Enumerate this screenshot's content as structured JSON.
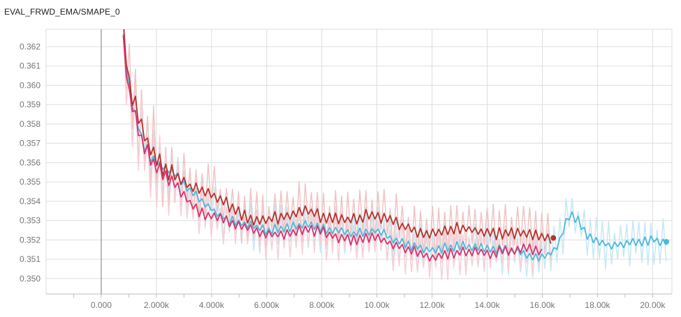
{
  "chart_data": {
    "type": "line",
    "title": "EVAL_FRWD_EMA/SMAPE_0",
    "xlabel": "",
    "ylabel": "",
    "xlim": [
      -2000,
      20700
    ],
    "ylim": [
      0.3492,
      0.3629
    ],
    "x_ticks": [
      "0.000",
      "2.000k",
      "4.000k",
      "6.000k",
      "8.000k",
      "10.00k",
      "12.00k",
      "14.00k",
      "16.00k",
      "18.00k",
      "20.00k"
    ],
    "x_tick_values": [
      0,
      2000,
      4000,
      6000,
      8000,
      10000,
      12000,
      14000,
      16000,
      18000,
      20000
    ],
    "y_ticks": [
      "0.350",
      "0.351",
      "0.352",
      "0.353",
      "0.354",
      "0.355",
      "0.356",
      "0.357",
      "0.358",
      "0.359",
      "0.360",
      "0.361",
      "0.362"
    ],
    "y_tick_values": [
      0.35,
      0.351,
      0.352,
      0.353,
      0.354,
      0.355,
      0.356,
      0.357,
      0.358,
      0.359,
      0.36,
      0.361,
      0.362
    ],
    "grid": true,
    "series": [
      {
        "color": "#4cb8dc",
        "raw_color": "#c6e7f4",
        "smoothed": [
          [
            800,
            0.3625
          ],
          [
            1000,
            0.3598
          ],
          [
            1200,
            0.3587
          ],
          [
            1500,
            0.3571
          ],
          [
            1800,
            0.3563
          ],
          [
            2200,
            0.3558
          ],
          [
            2600,
            0.3555
          ],
          [
            3000,
            0.3549
          ],
          [
            3500,
            0.3542
          ],
          [
            4000,
            0.3536
          ],
          [
            4500,
            0.3531
          ],
          [
            5000,
            0.3529
          ],
          [
            5500,
            0.3527
          ],
          [
            6000,
            0.3525
          ],
          [
            6500,
            0.3526
          ],
          [
            7000,
            0.3527
          ],
          [
            7500,
            0.3528
          ],
          [
            8000,
            0.3526
          ],
          [
            8500,
            0.3525
          ],
          [
            9000,
            0.3523
          ],
          [
            9500,
            0.3524
          ],
          [
            10000,
            0.3525
          ],
          [
            10500,
            0.3521
          ],
          [
            11000,
            0.3518
          ],
          [
            11500,
            0.3516
          ],
          [
            12000,
            0.3515
          ],
          [
            12500,
            0.3516
          ],
          [
            13000,
            0.3517
          ],
          [
            13500,
            0.3516
          ],
          [
            14000,
            0.3516
          ],
          [
            14500,
            0.3515
          ],
          [
            15000,
            0.3514
          ],
          [
            15500,
            0.3512
          ],
          [
            16000,
            0.3511
          ],
          [
            16500,
            0.3515
          ],
          [
            17000,
            0.3534
          ],
          [
            17300,
            0.353
          ],
          [
            17600,
            0.3522
          ],
          [
            18000,
            0.3519
          ],
          [
            18500,
            0.3517
          ],
          [
            19000,
            0.3518
          ],
          [
            19500,
            0.3519
          ],
          [
            20000,
            0.352
          ],
          [
            20500,
            0.3519
          ]
        ],
        "noise": 0.00025,
        "raw_noise": 0.0013,
        "end_dot": true
      },
      {
        "color": "#b5332f",
        "raw_color": "#efc4c3",
        "smoothed": [
          [
            800,
            0.3628
          ],
          [
            1000,
            0.3602
          ],
          [
            1200,
            0.3591
          ],
          [
            1500,
            0.3576
          ],
          [
            1800,
            0.3566
          ],
          [
            2200,
            0.3558
          ],
          [
            2600,
            0.3555
          ],
          [
            3000,
            0.3549
          ],
          [
            3500,
            0.3546
          ],
          [
            4000,
            0.3543
          ],
          [
            4500,
            0.3539
          ],
          [
            5000,
            0.3534
          ],
          [
            5500,
            0.3531
          ],
          [
            6000,
            0.353
          ],
          [
            6500,
            0.3532
          ],
          [
            7000,
            0.3534
          ],
          [
            7500,
            0.3535
          ],
          [
            8000,
            0.3532
          ],
          [
            8500,
            0.3531
          ],
          [
            9000,
            0.353
          ],
          [
            9500,
            0.3532
          ],
          [
            10000,
            0.3533
          ],
          [
            10500,
            0.353
          ],
          [
            11000,
            0.3527
          ],
          [
            11500,
            0.3524
          ],
          [
            12000,
            0.3523
          ],
          [
            12500,
            0.3524
          ],
          [
            13000,
            0.3526
          ],
          [
            13500,
            0.3525
          ],
          [
            14000,
            0.3524
          ],
          [
            14500,
            0.3523
          ],
          [
            15000,
            0.3524
          ],
          [
            15500,
            0.3523
          ],
          [
            16000,
            0.3522
          ],
          [
            16400,
            0.3521
          ]
        ],
        "noise": 0.00035,
        "raw_noise": 0.0016,
        "end_dot": true
      },
      {
        "color": "#d9336f",
        "raw_color": "#f6cfd6",
        "smoothed": [
          [
            800,
            0.3622
          ],
          [
            1000,
            0.3596
          ],
          [
            1200,
            0.3585
          ],
          [
            1500,
            0.357
          ],
          [
            1800,
            0.3562
          ],
          [
            2200,
            0.3555
          ],
          [
            2600,
            0.355
          ],
          [
            3000,
            0.3543
          ],
          [
            3500,
            0.3535
          ],
          [
            4000,
            0.3532
          ],
          [
            4500,
            0.353
          ],
          [
            5000,
            0.3528
          ],
          [
            5500,
            0.3526
          ],
          [
            6000,
            0.3523
          ],
          [
            6500,
            0.3523
          ],
          [
            7000,
            0.3524
          ],
          [
            7500,
            0.3525
          ],
          [
            8000,
            0.3524
          ],
          [
            8500,
            0.3522
          ],
          [
            9000,
            0.352
          ],
          [
            9500,
            0.3521
          ],
          [
            10000,
            0.3522
          ],
          [
            10500,
            0.3518
          ],
          [
            11000,
            0.3516
          ],
          [
            11500,
            0.3513
          ],
          [
            12000,
            0.3511
          ],
          [
            12500,
            0.3512
          ],
          [
            13000,
            0.3514
          ],
          [
            13500,
            0.3514
          ],
          [
            14000,
            0.3513
          ],
          [
            14500,
            0.3514
          ],
          [
            15000,
            0.3515
          ],
          [
            15500,
            0.3515
          ],
          [
            16000,
            0.3513
          ]
        ],
        "noise": 0.0003,
        "raw_noise": 0.0014,
        "end_dot": false
      }
    ]
  }
}
